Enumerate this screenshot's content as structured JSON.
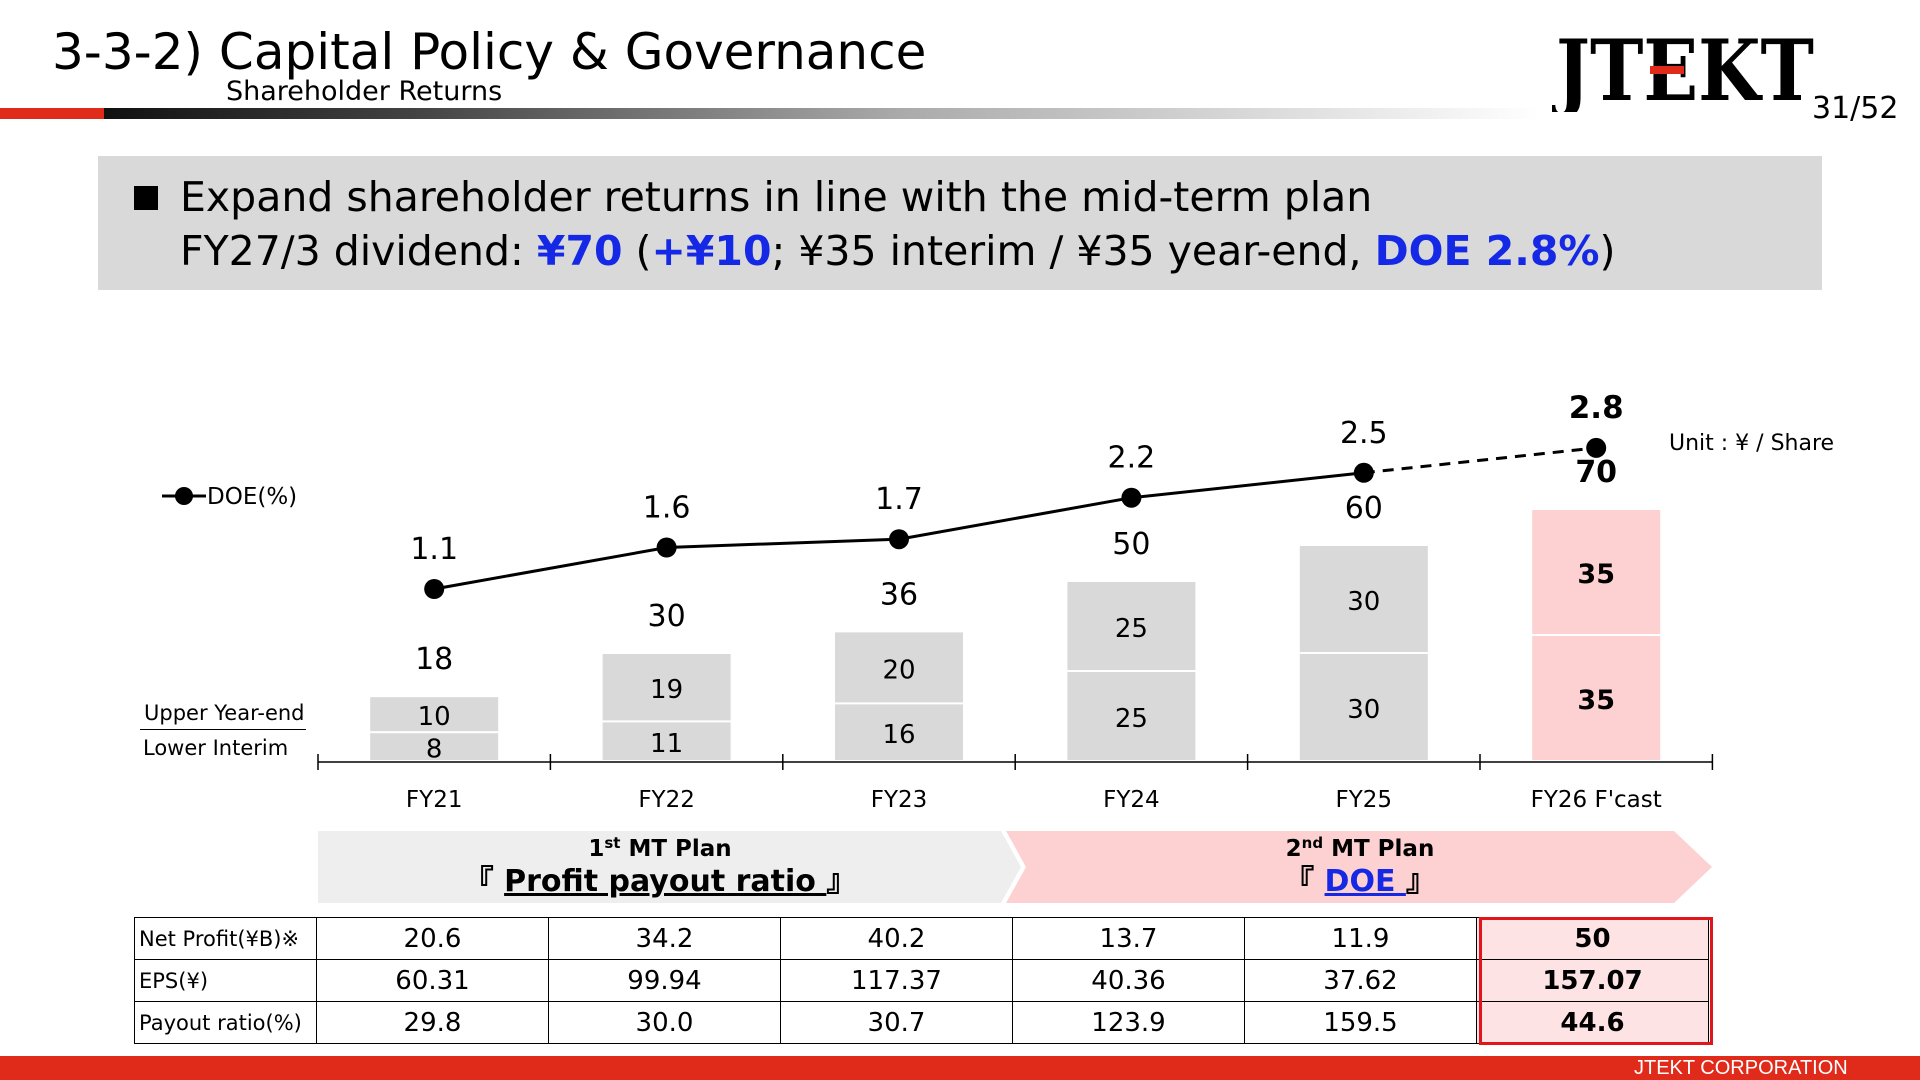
{
  "header": {
    "title": "3-3-2) Capital Policy & Governance",
    "subtitle": "Shareholder Returns",
    "logo_text": "JTEKT",
    "page": "31/52"
  },
  "banner": {
    "line1": "Expand shareholder returns in line with the mid-term plan",
    "line2_prefix": "FY27/3 dividend: ",
    "dividend": "¥70",
    "open_paren": " (",
    "increase": "+¥10",
    "line2_mid": "; ¥35 interim / ¥35 year-end, ",
    "doe": "DOE 2.8%",
    "close_paren": ")"
  },
  "chart_data": {
    "type": "bar",
    "categories": [
      "FY21",
      "FY22",
      "FY23",
      "FY24",
      "FY25",
      "FY26 F'cast"
    ],
    "series": [
      {
        "name": "Interim",
        "values": [
          8,
          11,
          16,
          25,
          30,
          35
        ]
      },
      {
        "name": "Year-end",
        "values": [
          10,
          19,
          20,
          25,
          30,
          35
        ]
      }
    ],
    "totals": [
      18,
      30,
      36,
      50,
      60,
      70
    ],
    "line_series": {
      "name": "DOE(%)",
      "values": [
        1.1,
        1.6,
        1.7,
        2.2,
        2.5,
        2.8
      ],
      "forecast_from_index": 4
    },
    "unit": "Unit : ¥  /  Share",
    "legend_line": "DOE(%)",
    "stack_labels": {
      "upper": "Upper Year-end",
      "lower": "Lower   Interim"
    },
    "forecast_index": 5,
    "colors": {
      "bar": "#d9d9d9",
      "forecast_bar": "#fdd1d1",
      "line": "#000000"
    }
  },
  "plans": [
    {
      "ordinal": "1",
      "suffix": "st",
      "label": " MT Plan",
      "open": "『 ",
      "name": "Profit payout ratio ",
      "close": "』"
    },
    {
      "ordinal": "2",
      "suffix": "nd",
      "label": " MT Plan",
      "open": "『 ",
      "name": "DOE ",
      "close": "』"
    }
  ],
  "table": {
    "rows": [
      {
        "label": "Net Profit(¥B)※",
        "values": [
          "20.6",
          "34.2",
          "40.2",
          "13.7",
          "11.9",
          "50"
        ]
      },
      {
        "label": "EPS(¥)",
        "values": [
          "60.31",
          "99.94",
          "117.37",
          "40.36",
          "37.62",
          "157.07"
        ]
      },
      {
        "label": "Payout ratio(%)",
        "values": [
          "29.8",
          "30.0",
          "30.7",
          "123.9",
          "159.5",
          "44.6"
        ]
      }
    ]
  },
  "footer": {
    "company": "JTEKT  CORPORATION"
  }
}
